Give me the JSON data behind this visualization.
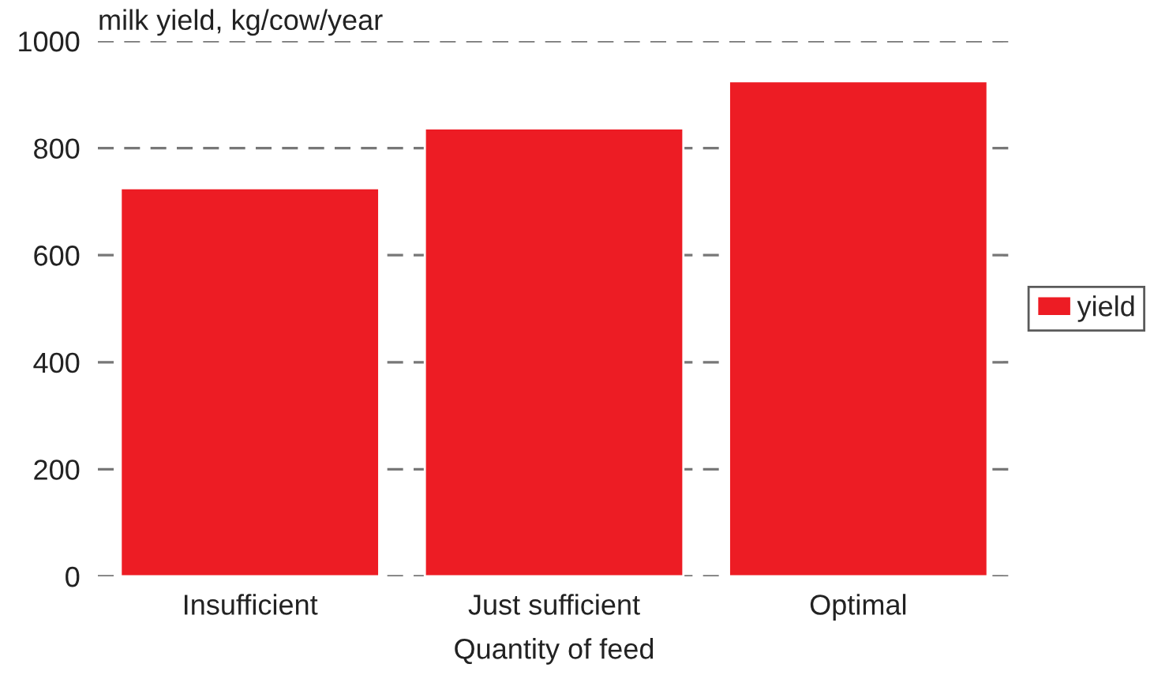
{
  "chart_data": {
    "type": "bar",
    "ylabel": "milk yield, kg/cow/year",
    "xlabel": "Quantity of feed",
    "categories": [
      "Insufficient",
      "Just sufficient",
      "Optimal"
    ],
    "series": [
      {
        "name": "yield",
        "color": "#ed1c24",
        "values": [
          725,
          837,
          925
        ]
      }
    ],
    "ylim": [
      0,
      1000
    ],
    "yticks": [
      0,
      200,
      400,
      600,
      800,
      1000
    ],
    "grid": "y",
    "legend": "right"
  }
}
